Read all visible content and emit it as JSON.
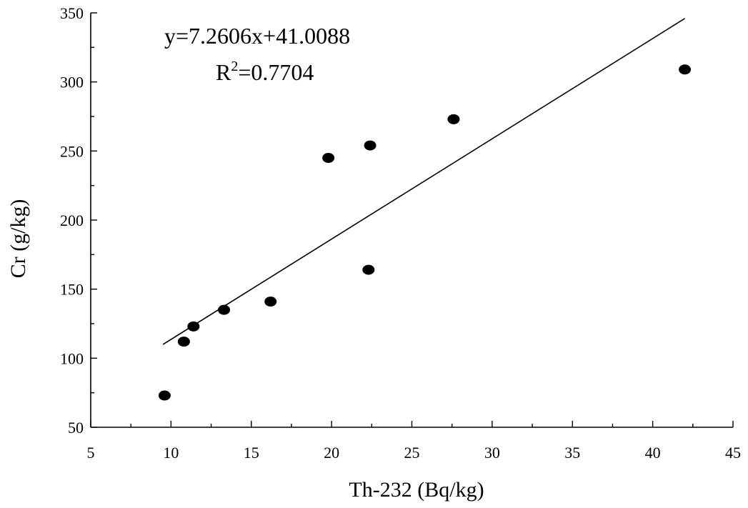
{
  "chart_data": {
    "type": "scatter",
    "xlabel": "Th-232 (Bq/kg)",
    "ylabel": "Cr (g/kg)",
    "xlim": [
      5,
      45
    ],
    "ylim": [
      50,
      350
    ],
    "x_ticks": [
      5,
      10,
      15,
      20,
      25,
      30,
      35,
      40,
      45
    ],
    "y_ticks": [
      50,
      100,
      150,
      200,
      250,
      300,
      350
    ],
    "x_tick_labels": [
      "5",
      "10",
      "15",
      "20",
      "25",
      "30",
      "35",
      "40",
      "45"
    ],
    "y_tick_labels": [
      "50",
      "100",
      "150",
      "200",
      "250",
      "300",
      "350"
    ],
    "points": [
      {
        "x": 9.6,
        "y": 73
      },
      {
        "x": 10.8,
        "y": 112
      },
      {
        "x": 11.4,
        "y": 123
      },
      {
        "x": 13.3,
        "y": 135
      },
      {
        "x": 16.2,
        "y": 141
      },
      {
        "x": 19.8,
        "y": 245
      },
      {
        "x": 22.3,
        "y": 164
      },
      {
        "x": 22.4,
        "y": 254
      },
      {
        "x": 27.6,
        "y": 273
      },
      {
        "x": 42.0,
        "y": 309
      }
    ],
    "fit": {
      "equation": "y=7.2606x+41.0088",
      "r2_label": "R",
      "r2_superscript": "2",
      "r2_value": "=0.7704",
      "slope": 7.2606,
      "intercept": 41.0088,
      "x_range": [
        9.5,
        42.0
      ]
    },
    "legend": "none",
    "grid": false
  }
}
